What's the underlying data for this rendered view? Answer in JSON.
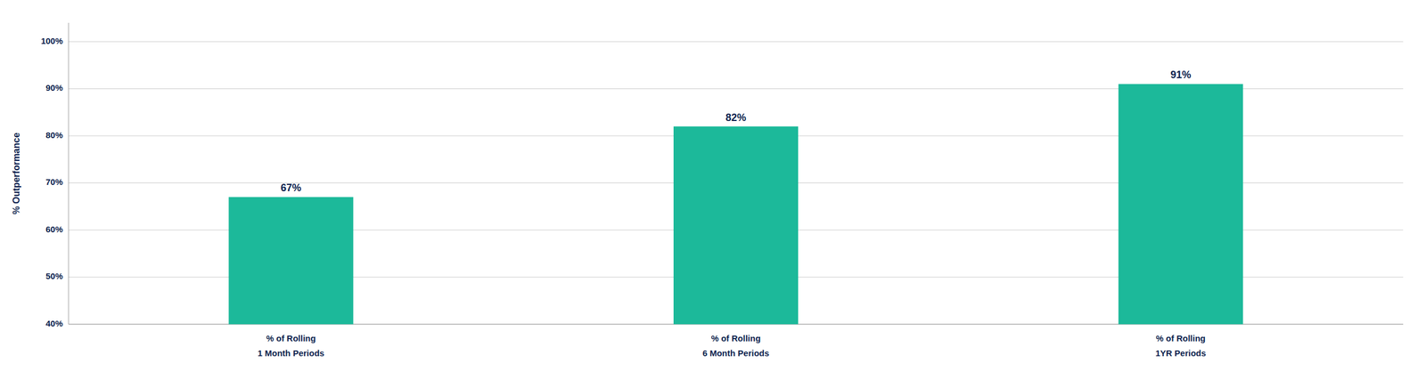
{
  "chart_data": {
    "type": "bar",
    "categories": [
      "% of Rolling\n1 Month Periods",
      "% of Rolling\n6 Month Periods",
      "% of Rolling\n1YR Periods"
    ],
    "values": [
      67,
      82,
      91
    ],
    "value_labels": [
      "67%",
      "82%",
      "91%"
    ],
    "data_labels": true,
    "color": "#1CB99A",
    "ylabel": "% Outperformance",
    "ylim": [
      40,
      104
    ],
    "yticks": [
      {
        "value": 40,
        "label": "40%"
      },
      {
        "value": 50,
        "label": "50%"
      },
      {
        "value": 60,
        "label": "60%"
      },
      {
        "value": 70,
        "label": "70%"
      },
      {
        "value": 80,
        "label": "80%"
      },
      {
        "value": 90,
        "label": "90%"
      },
      {
        "value": 100,
        "label": "100%"
      }
    ],
    "grid": true
  }
}
